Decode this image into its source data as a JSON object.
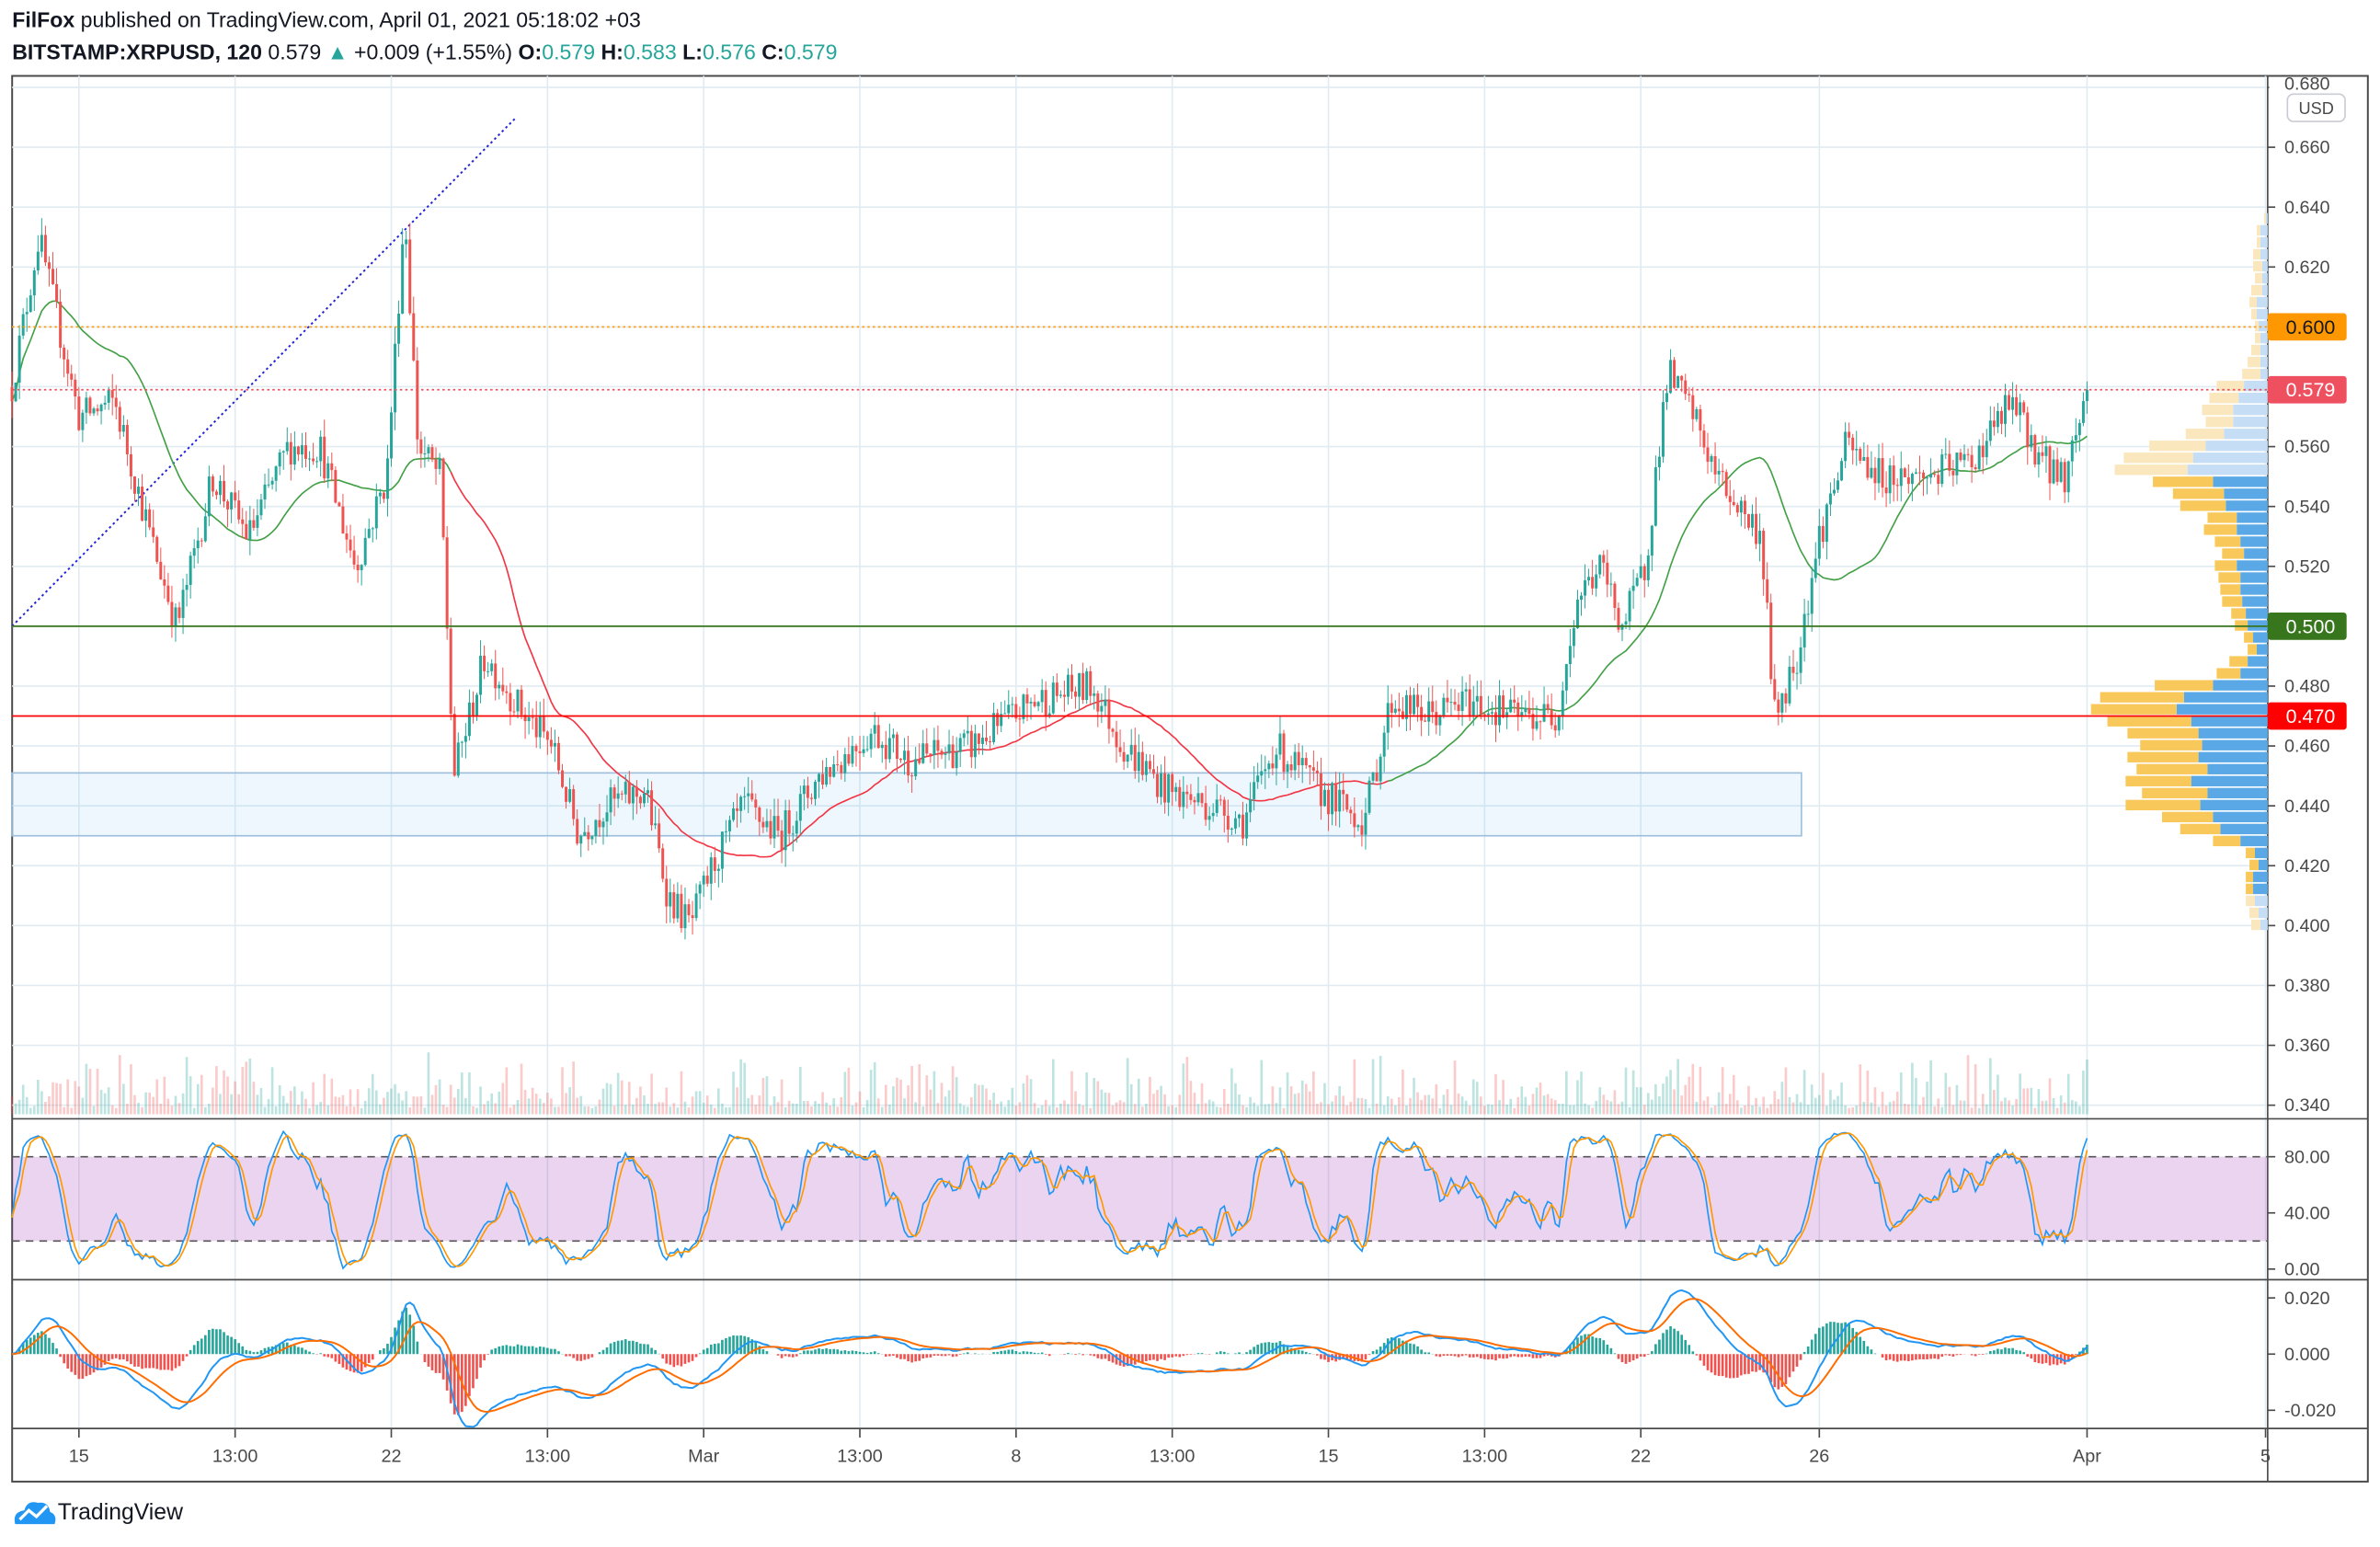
{
  "header": {
    "author": "FilFox",
    "published": "published on TradingView.com, April 01, 2021 05:18:02 +03",
    "symbol": "BITSTAMP:XRPUSD, 120",
    "last": "0.579",
    "change": "+0.009 (+1.55%)",
    "o_label": "O:",
    "o": "0.579",
    "h_label": "H:",
    "h": "0.583",
    "l_label": "L:",
    "l": "0.576",
    "c_label": "C:",
    "c": "0.579"
  },
  "currency": "USD",
  "branding": "TradingView",
  "colors": {
    "up": "#26a69a",
    "down": "#ef5350",
    "orange": "#ff9800",
    "green_level": "#38761d",
    "red_level": "#ff0000",
    "last_price": "#ef5060"
  },
  "chart_data": {
    "type": "candlestick",
    "title": "BITSTAMP:XRPUSD, 120",
    "interval_minutes": 120,
    "x_unit": "day (Feb 1 = 1, Mar 1 = 29, Apr 1 = 60)",
    "anchors": [
      [
        13.5,
        0.58
      ],
      [
        14.1,
        0.63
      ],
      [
        15,
        0.57
      ],
      [
        15.8,
        0.575
      ],
      [
        16.6,
        0.53
      ],
      [
        17.2,
        0.5
      ],
      [
        18.0,
        0.55
      ],
      [
        18.8,
        0.53
      ],
      [
        19.7,
        0.56
      ],
      [
        20.4,
        0.56
      ],
      [
        21.2,
        0.52
      ],
      [
        21.9,
        0.55
      ],
      [
        22.3,
        0.64
      ],
      [
        22.6,
        0.56
      ],
      [
        23.1,
        0.55
      ],
      [
        23.4,
        0.45
      ],
      [
        24.1,
        0.49
      ],
      [
        25.0,
        0.47
      ],
      [
        25.6,
        0.46
      ],
      [
        26.2,
        0.43
      ],
      [
        26.8,
        0.44
      ],
      [
        27.7,
        0.445
      ],
      [
        28.2,
        0.41
      ],
      [
        28.7,
        0.4
      ],
      [
        29.2,
        0.42
      ],
      [
        29.9,
        0.44
      ],
      [
        30.7,
        0.43
      ],
      [
        31.6,
        0.45
      ],
      [
        32.8,
        0.465
      ],
      [
        33.6,
        0.455
      ],
      [
        35.0,
        0.46
      ],
      [
        36.4,
        0.475
      ],
      [
        37.7,
        0.48
      ],
      [
        38.4,
        0.46
      ],
      [
        39.4,
        0.445
      ],
      [
        40.4,
        0.44
      ],
      [
        41.1,
        0.435
      ],
      [
        41.8,
        0.46
      ],
      [
        42.8,
        0.445
      ],
      [
        43.8,
        0.435
      ],
      [
        44.4,
        0.475
      ],
      [
        45.2,
        0.47
      ],
      [
        46.2,
        0.475
      ],
      [
        47.2,
        0.47
      ],
      [
        48.1,
        0.47
      ],
      [
        48.6,
        0.51
      ],
      [
        49.1,
        0.52
      ],
      [
        49.6,
        0.5
      ],
      [
        50.1,
        0.52
      ],
      [
        50.6,
        0.585
      ],
      [
        51.2,
        0.57
      ],
      [
        51.7,
        0.55
      ],
      [
        52.2,
        0.54
      ],
      [
        52.7,
        0.53
      ],
      [
        53.0,
        0.47
      ],
      [
        53.5,
        0.49
      ],
      [
        54.0,
        0.53
      ],
      [
        54.6,
        0.56
      ],
      [
        55.4,
        0.55
      ],
      [
        56.4,
        0.55
      ],
      [
        57.4,
        0.555
      ],
      [
        58.3,
        0.575
      ],
      [
        59.0,
        0.555
      ],
      [
        59.5,
        0.55
      ],
      [
        60.0,
        0.579
      ]
    ],
    "price_axis": {
      "ticks": [
        "0.680",
        "0.660",
        "0.640",
        "0.620",
        "0.600",
        "0.580",
        "0.560",
        "0.540",
        "0.520",
        "0.500",
        "0.480",
        "0.460",
        "0.440",
        "0.420",
        "0.400",
        "0.380",
        "0.360",
        "0.340"
      ],
      "visible": [
        "0.680",
        "0.660",
        "0.640",
        "0.620",
        "0.560",
        "0.540",
        "0.520",
        "0.480",
        "0.460",
        "0.440",
        "0.420",
        "0.400",
        "0.380",
        "0.360",
        "0.340"
      ],
      "range": [
        0.335,
        0.684
      ]
    },
    "levels": [
      {
        "label": "0.600",
        "price": 0.6,
        "style": "dotted",
        "color": "#ff9800",
        "text_color": "#131722"
      },
      {
        "label": "0.579",
        "price": 0.579,
        "style": "dotted",
        "color": "#ef5060",
        "text_color": "#ffffff"
      },
      {
        "label": "0.500",
        "price": 0.5,
        "style": "solid",
        "color": "#38761d",
        "text_color": "#ffffff"
      },
      {
        "label": "0.470",
        "price": 0.47,
        "style": "solid",
        "color": "#ff0000",
        "text_color": "#ffffff"
      }
    ],
    "zone": {
      "from_day": 13.5,
      "to_day": 53.6,
      "low": 0.43,
      "high": 0.451
    },
    "trendline": {
      "from": [
        13.5,
        0.5
      ],
      "to": [
        24.8,
        0.67
      ]
    },
    "x_ticks": [
      {
        "label": "15",
        "day": 15
      },
      {
        "label": "13:00",
        "day": 18.5
      },
      {
        "label": "22",
        "day": 22
      },
      {
        "label": "13:00",
        "day": 25.5
      },
      {
        "label": "Mar",
        "day": 29
      },
      {
        "label": "13:00",
        "day": 32.5
      },
      {
        "label": "8",
        "day": 36
      },
      {
        "label": "13:00",
        "day": 39.5
      },
      {
        "label": "15",
        "day": 43
      },
      {
        "label": "13:00",
        "day": 46.5
      },
      {
        "label": "22",
        "day": 50
      },
      {
        "label": "26",
        "day": 54
      },
      {
        "label": "Apr",
        "day": 60
      },
      {
        "label": "5",
        "day": 64
      }
    ],
    "stoch_rsi": {
      "ticks": [
        "80.00",
        "40.00",
        "0.00"
      ],
      "upper": 80,
      "lower": 20
    },
    "macd": {
      "ticks": [
        "0.020",
        "0.000",
        "-0.020"
      ]
    }
  }
}
